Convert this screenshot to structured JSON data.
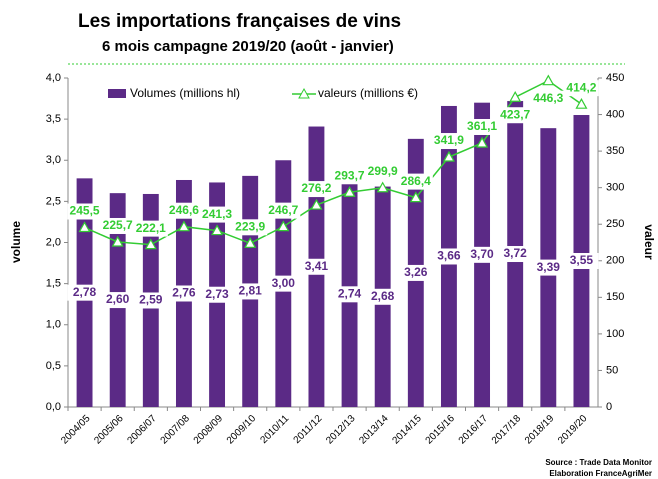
{
  "chart_data": {
    "type": "bar_line",
    "title": "Les importations françaises de vins",
    "subtitle": "6 mois campagne 2019/20 (août - janvier)",
    "ylabel": "volume",
    "y2label": "valeur",
    "source": [
      "Source : Trade Data Monitor",
      "Elaboration FranceAgriMer"
    ],
    "categories": [
      "2004/05",
      "2005/06",
      "2006/07",
      "2007/08",
      "2008/09",
      "2009/10",
      "2010/11",
      "2011/12",
      "2012/13",
      "2013/14",
      "2014/15",
      "2015/16",
      "2016/17",
      "2017/18",
      "2018/19",
      "2019/20"
    ],
    "series": [
      {
        "name": "Volumes (millions hl)",
        "color": "#5b2a86",
        "kind": "bar",
        "values": [
          2.78,
          2.6,
          2.59,
          2.76,
          2.73,
          2.81,
          3.0,
          3.41,
          2.74,
          2.68,
          3.26,
          3.66,
          3.7,
          3.72,
          3.39,
          3.55
        ],
        "value_labels": [
          "2,78",
          "2,60",
          "2,59",
          "2,76",
          "2,73",
          "2,81",
          "3,00",
          "3,41",
          "2,74",
          "2,68",
          "3,26",
          "3,66",
          "3,70",
          "3,72",
          "3,39",
          "3,55"
        ]
      },
      {
        "name": "valeurs (millions €)",
        "color": "#33cc33",
        "kind": "line",
        "axis": "y2",
        "values": [
          245.5,
          225.7,
          222.1,
          246.6,
          241.3,
          223.9,
          246.7,
          276.2,
          293.7,
          299.9,
          286.4,
          341.9,
          361.1,
          423.7,
          446.3,
          414.2
        ],
        "value_labels": [
          "245,5",
          "225,7",
          "222,1",
          "246,6",
          "241,3",
          "223,9",
          "246,7",
          "276,2",
          "293,7",
          "299,9",
          "286,4",
          "341,9",
          "361,1",
          "423,7",
          "446,3",
          "414,2"
        ]
      }
    ],
    "ylim": [
      0,
      4
    ],
    "yticks": [
      {
        "value": 0,
        "label": "0,0"
      },
      {
        "value": 0.5,
        "label": "0,5"
      },
      {
        "value": 1,
        "label": "1,0"
      },
      {
        "value": 1.5,
        "label": "1,5"
      },
      {
        "value": 2,
        "label": "2,0"
      },
      {
        "value": 2.5,
        "label": "2,5"
      },
      {
        "value": 3,
        "label": "3,0"
      },
      {
        "value": 3.5,
        "label": "3,5"
      },
      {
        "value": 4,
        "label": "4,0"
      }
    ],
    "y2lim": [
      0,
      450
    ],
    "y2ticks": [
      0,
      50,
      100,
      150,
      200,
      250,
      300,
      350,
      400,
      450
    ]
  }
}
